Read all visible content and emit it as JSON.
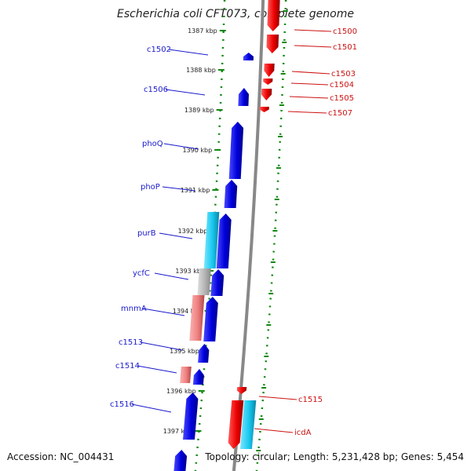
{
  "title": "Escherichia coli CFT073, complete genome",
  "accession_text": "Accession: NC_004431",
  "info_text": "Topology: circular; Length: 5,231,428 bp; Genes: 5,454",
  "colors": {
    "forward": "#0000ee",
    "reverse": "#ee0000",
    "cyan": "#19c8f0",
    "gray": "#b4b4b4",
    "pink": "#f08080",
    "axis": "#888888",
    "ruler": "#118811"
  },
  "kbp_ticks": [
    "1387 kbp",
    "1388 kbp",
    "1389 kbp",
    "1390 kbp",
    "1391 kbp",
    "1392 kbp",
    "1393 kbp",
    "1394 kbp",
    "1395 kbp",
    "1396 kbp",
    "1397 kbp"
  ],
  "left_labels": [
    "c1502",
    "c1506",
    "phoQ",
    "phoP",
    "purB",
    "ycfC",
    "mnmA",
    "c1513",
    "c1514",
    "c1516"
  ],
  "right_labels": [
    "c1500",
    "c1501",
    "c1503",
    "c1504",
    "c1505",
    "c1507",
    "c1515",
    "icdA"
  ]
}
